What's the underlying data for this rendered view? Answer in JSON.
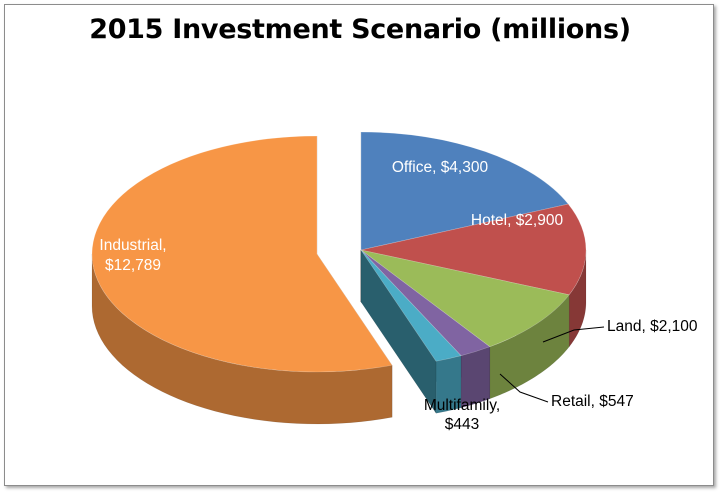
{
  "chart_data": {
    "type": "pie",
    "title": "2015 Investment Scenario (millions)",
    "categories": [
      "Office",
      "Hotel",
      "Land",
      "Retail",
      "Multifamily",
      "Industrial"
    ],
    "values": [
      4300,
      2900,
      2100,
      547,
      443,
      12789
    ],
    "labels": {
      "Office": [
        "Office, $4,300"
      ],
      "Hotel": [
        "Hotel, $2,900"
      ],
      "Land": [
        "Land, $2,100"
      ],
      "Retail": [
        "Retail, $547"
      ],
      "Multifamily": [
        "Multifamily,",
        "$443"
      ],
      "Industrial": [
        "Industrial,",
        "$12,789"
      ]
    },
    "colors": {
      "Office": "#4f81bd",
      "Hotel": "#c0504d",
      "Land": "#9bbb59",
      "Retail": "#8064a2",
      "Multifamily": "#4bacc6",
      "Industrial": "#f79646"
    },
    "exploded": "Industrial",
    "style": "3d-pie",
    "legend": "none"
  }
}
